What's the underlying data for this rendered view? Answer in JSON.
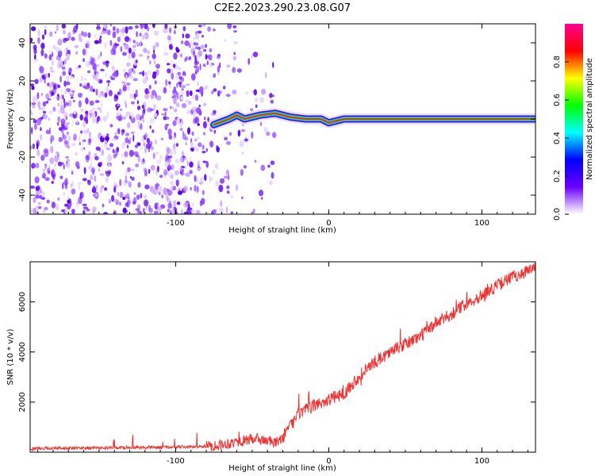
{
  "figure": {
    "title": "C2E2.2023.290.23.08.G07"
  },
  "chart_data": [
    {
      "type": "heatmap",
      "title": "C2E2.2023.290.23.08.G07",
      "xlabel": "Height of straight line (km)",
      "ylabel": "Frequency (Hz)",
      "xlim": [
        -195,
        135
      ],
      "ylim": [
        -50,
        50
      ],
      "xticks": [
        -100,
        0,
        100
      ],
      "yticks": [
        -40,
        -20,
        0,
        20,
        40
      ],
      "grid": false,
      "colorbar": {
        "label": "Normalized spectral amplitude",
        "range": [
          0.0,
          1.0
        ],
        "ticks": [
          0.0,
          0.2,
          0.4,
          0.6,
          0.8
        ],
        "colormap": [
          "#ffffff",
          "#6a00ff",
          "#0000ff",
          "#00ffff",
          "#00ff00",
          "#ffff00",
          "#ff0000",
          "#ff0090"
        ]
      },
      "noise_region": [
        -195,
        -35
      ],
      "ridge": [
        {
          "x": -75,
          "y": -3
        },
        {
          "x": -65,
          "y": 0
        },
        {
          "x": -60,
          "y": 2
        },
        {
          "x": -55,
          "y": 0
        },
        {
          "x": -45,
          "y": 2
        },
        {
          "x": -35,
          "y": 3
        },
        {
          "x": -25,
          "y": 1
        },
        {
          "x": -15,
          "y": 0
        },
        {
          "x": -5,
          "y": 0
        },
        {
          "x": 0,
          "y": -2
        },
        {
          "x": 5,
          "y": -1
        },
        {
          "x": 10,
          "y": 0
        },
        {
          "x": 60,
          "y": 0
        },
        {
          "x": 100,
          "y": 0
        },
        {
          "x": 135,
          "y": 0
        }
      ]
    },
    {
      "type": "line",
      "xlabel": "Height of straight line (km)",
      "ylabel": "SNR (10 * v/v)",
      "xlim": [
        -195,
        135
      ],
      "ylim": [
        0,
        7600
      ],
      "xticks": [
        -100,
        0,
        100
      ],
      "yticks": [
        2000,
        4000,
        6000
      ],
      "grid": false,
      "color": "#ee3333",
      "series": [
        {
          "x": [
            -195,
            -150,
            -100,
            -80,
            -70,
            -60,
            -50,
            -40,
            -35,
            -30,
            -25,
            -20,
            -10,
            0,
            10,
            20,
            30,
            40,
            50,
            60,
            70,
            80,
            90,
            100,
            110,
            120,
            135
          ],
          "y": [
            150,
            170,
            200,
            230,
            300,
            420,
            520,
            470,
            350,
            600,
            1050,
            1500,
            1850,
            2100,
            2350,
            3050,
            3600,
            4000,
            4300,
            4650,
            5150,
            5500,
            5950,
            6250,
            6650,
            7000,
            7350
          ]
        }
      ]
    }
  ]
}
